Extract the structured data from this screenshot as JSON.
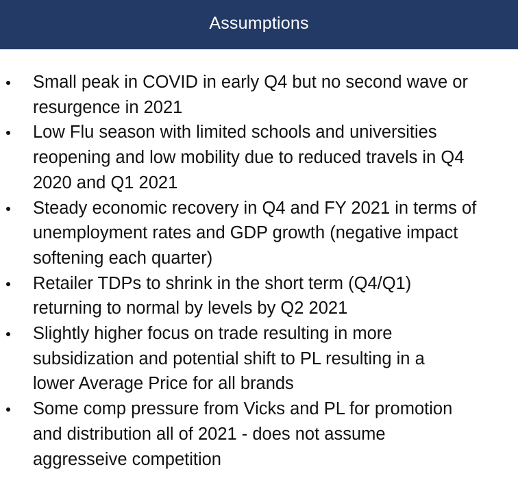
{
  "header": {
    "title": "Assumptions",
    "background_color": "#233a66",
    "text_color": "#ffffff"
  },
  "bullets": [
    {
      "lines": [
        "Small peak in COVID in early Q4 but no second wave or",
        "resurgence in 2021"
      ]
    },
    {
      "lines": [
        "Low Flu season with limited schools and universities",
        "reopening and low mobility due to reduced travels in Q4",
        "2020 and Q1 2021"
      ]
    },
    {
      "lines": [
        "Steady economic recovery in Q4 and FY 2021 in terms of",
        "unemployment rates and GDP growth (negative impact",
        "softening each quarter)"
      ]
    },
    {
      "lines": [
        "Retailer TDPs to shrink in the short term (Q4/Q1)",
        "returning to normal by levels by Q2 2021"
      ]
    },
    {
      "lines": [
        "Slightly higher focus on trade resulting in more",
        "subsidization and potential shift to PL resulting in a",
        "lower Average Price for all brands"
      ]
    },
    {
      "lines": [
        "Some comp pressure from Vicks and PL for promotion",
        "and distribution all of 2021 - does not assume",
        "aggresseive competition"
      ]
    }
  ]
}
